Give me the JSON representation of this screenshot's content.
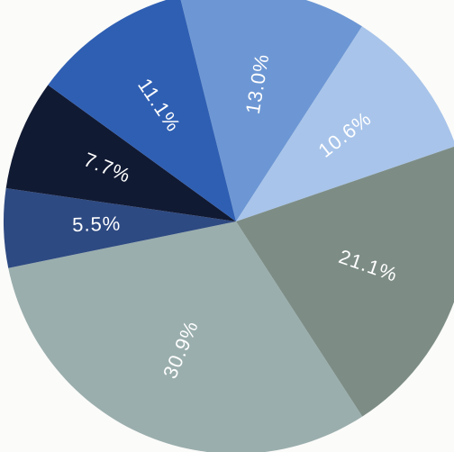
{
  "chart_data": {
    "type": "pie",
    "title": "",
    "slices": [
      {
        "label": "13.0%",
        "value": 13.0,
        "color": "#6d97d4"
      },
      {
        "label": "10.6%",
        "value": 10.6,
        "color": "#a8c4ea"
      },
      {
        "label": "21.1%",
        "value": 21.1,
        "color": "#7d8d86"
      },
      {
        "label": "30.9%",
        "value": 30.9,
        "color": "#9aaead"
      },
      {
        "label": "5.5%",
        "value": 5.5,
        "color": "#2e4a82"
      },
      {
        "label": "7.7%",
        "value": 7.7,
        "color": "#111a33"
      },
      {
        "label": "11.1%",
        "value": 11.1,
        "color": "#2f5fb3"
      }
    ]
  }
}
